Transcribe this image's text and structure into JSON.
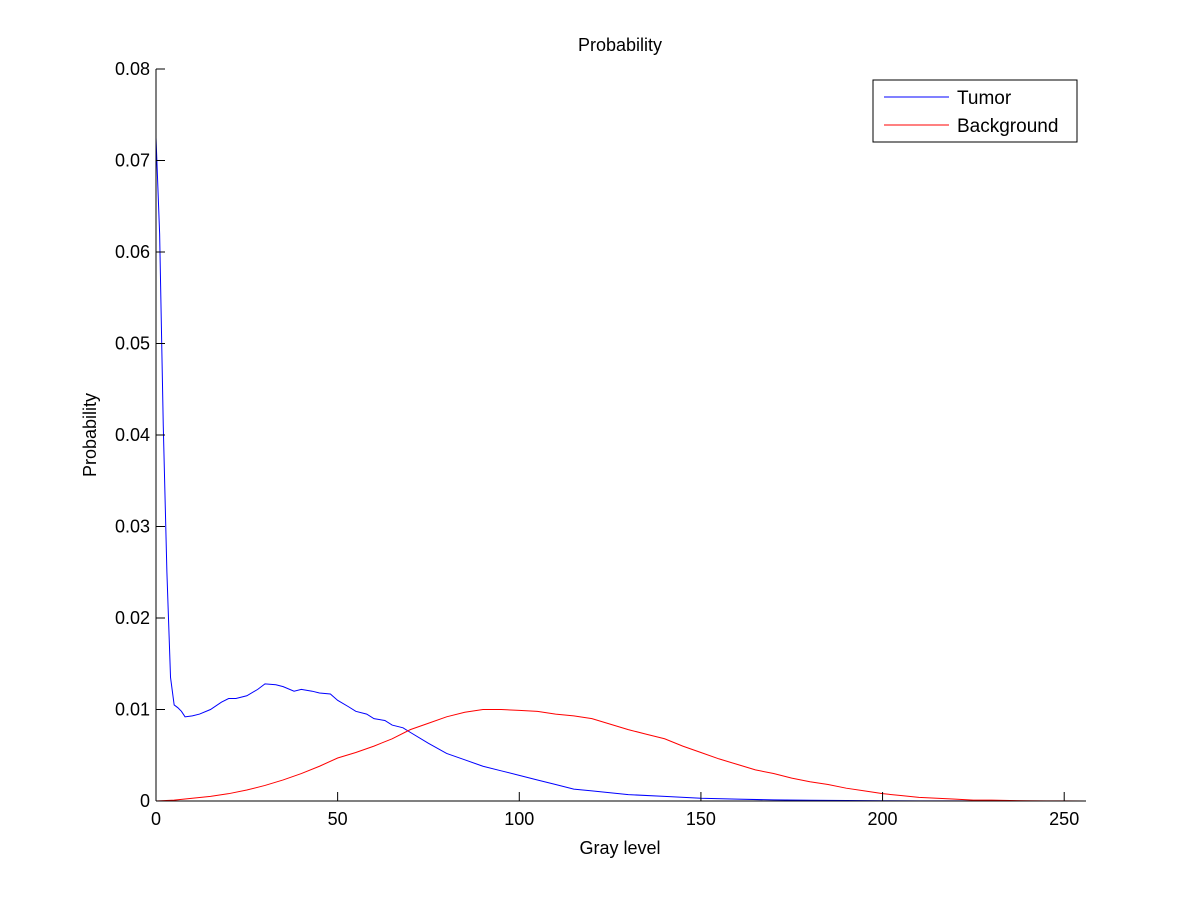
{
  "chart_data": {
    "type": "line",
    "title": "Probability",
    "xlabel": "Gray level",
    "ylabel": "Probability",
    "xlim": [
      0,
      256
    ],
    "ylim": [
      0,
      0.08
    ],
    "xticks": [
      0,
      50,
      100,
      150,
      200,
      250
    ],
    "xtick_labels": [
      "0",
      "50",
      "100",
      "150",
      "200",
      "250"
    ],
    "yticks": [
      0,
      0.01,
      0.02,
      0.03,
      0.04,
      0.05,
      0.06,
      0.07,
      0.08
    ],
    "ytick_labels": [
      "0",
      "0.01",
      "0.02",
      "0.03",
      "0.04",
      "0.05",
      "0.06",
      "0.07",
      "0.08"
    ],
    "grid": false,
    "legend_position": "top-right",
    "series": [
      {
        "name": "Tumor",
        "color": "#0000ff",
        "x": [
          0,
          1,
          2,
          3,
          4,
          5,
          6,
          7,
          8,
          10,
          12,
          15,
          18,
          20,
          22,
          25,
          28,
          30,
          33,
          35,
          38,
          40,
          43,
          45,
          48,
          50,
          53,
          55,
          58,
          60,
          63,
          65,
          68,
          70,
          75,
          80,
          85,
          90,
          95,
          100,
          105,
          110,
          115,
          120,
          125,
          130,
          140,
          150,
          160,
          170,
          180,
          190,
          200,
          210,
          220,
          230,
          240,
          250,
          256
        ],
        "y": [
          0.0725,
          0.062,
          0.041,
          0.025,
          0.0135,
          0.0105,
          0.0102,
          0.0098,
          0.0092,
          0.0093,
          0.0095,
          0.01,
          0.0108,
          0.0112,
          0.0112,
          0.0115,
          0.0122,
          0.0128,
          0.0127,
          0.0125,
          0.012,
          0.0122,
          0.012,
          0.0118,
          0.0117,
          0.011,
          0.0103,
          0.0098,
          0.0095,
          0.009,
          0.0088,
          0.0083,
          0.008,
          0.0075,
          0.0063,
          0.0052,
          0.0045,
          0.0038,
          0.0033,
          0.0028,
          0.0023,
          0.0018,
          0.0013,
          0.0011,
          0.0009,
          0.0007,
          0.0005,
          0.0003,
          0.0002,
          0.00012,
          8e-05,
          5e-05,
          3e-05,
          2e-05,
          1e-05,
          1e-05,
          0.0,
          0.0,
          0.0
        ]
      },
      {
        "name": "Background",
        "color": "#ff0000",
        "x": [
          0,
          5,
          10,
          15,
          20,
          25,
          30,
          35,
          40,
          45,
          50,
          55,
          60,
          65,
          70,
          75,
          80,
          85,
          90,
          95,
          100,
          105,
          110,
          115,
          120,
          125,
          130,
          135,
          140,
          145,
          150,
          155,
          160,
          165,
          170,
          175,
          180,
          185,
          190,
          195,
          200,
          205,
          210,
          215,
          220,
          225,
          230,
          235,
          240,
          245,
          250,
          256
        ],
        "y": [
          0.0,
          0.0001,
          0.0003,
          0.0005,
          0.0008,
          0.0012,
          0.0017,
          0.0023,
          0.003,
          0.0038,
          0.0047,
          0.0053,
          0.006,
          0.0068,
          0.0078,
          0.0085,
          0.0092,
          0.0097,
          0.01,
          0.01,
          0.0099,
          0.0098,
          0.0095,
          0.0093,
          0.009,
          0.0084,
          0.0078,
          0.0073,
          0.0068,
          0.006,
          0.0053,
          0.0046,
          0.004,
          0.0034,
          0.003,
          0.0025,
          0.0021,
          0.0018,
          0.0014,
          0.0011,
          0.0008,
          0.0006,
          0.0004,
          0.0003,
          0.0002,
          0.0001,
          0.0001,
          5e-05,
          3e-05,
          2e-05,
          1e-05,
          0.0
        ]
      }
    ]
  }
}
